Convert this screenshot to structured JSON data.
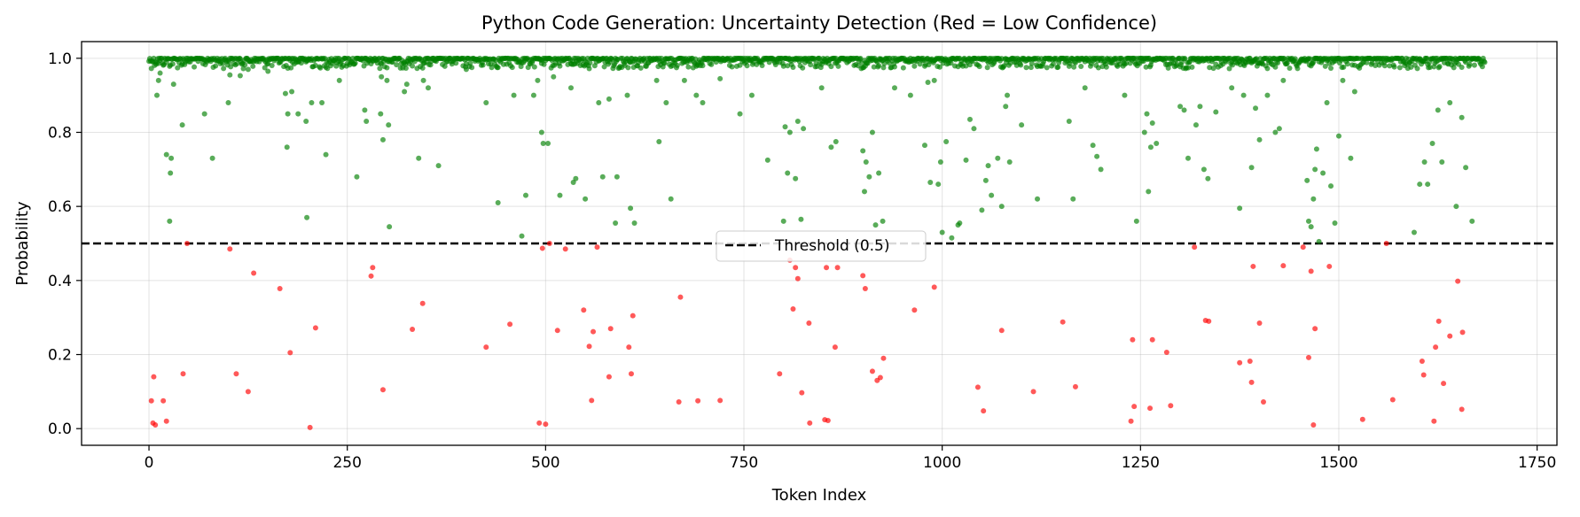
{
  "chart_data": {
    "type": "scatter",
    "title": "Python Code Generation: Uncertainty Detection (Red = Low Confidence)",
    "xlabel": "Token Index",
    "ylabel": "Probability",
    "xlim": [
      -85,
      1775
    ],
    "ylim": [
      -0.045,
      1.045
    ],
    "xticks": [
      0,
      250,
      500,
      750,
      1000,
      1250,
      1500,
      1750
    ],
    "yticks": [
      0.0,
      0.2,
      0.4,
      0.6,
      0.8,
      1.0
    ],
    "xtick_labels": [
      "0",
      "250",
      "500",
      "750",
      "1000",
      "1250",
      "1500",
      "1750"
    ],
    "ytick_labels": [
      "0.0",
      "0.2",
      "0.4",
      "0.6",
      "0.8",
      "1.0"
    ],
    "grid": true,
    "legend_position": "center",
    "threshold": {
      "label": "Threshold (0.5)",
      "value": 0.5,
      "color": "#000000"
    },
    "colors": {
      "high": "#008000",
      "low": "#ff0000"
    },
    "n_tokens": 1685,
    "low_confidence": [
      [
        3,
        0.075
      ],
      [
        5,
        0.015
      ],
      [
        6,
        0.14
      ],
      [
        8,
        0.01
      ],
      [
        18,
        0.075
      ],
      [
        22,
        0.02
      ],
      [
        43,
        0.148
      ],
      [
        48,
        0.5
      ],
      [
        102,
        0.485
      ],
      [
        110,
        0.148
      ],
      [
        125,
        0.1
      ],
      [
        132,
        0.42
      ],
      [
        165,
        0.378
      ],
      [
        178,
        0.205
      ],
      [
        203,
        0.003
      ],
      [
        210,
        0.272
      ],
      [
        280,
        0.412
      ],
      [
        282,
        0.435
      ],
      [
        295,
        0.105
      ],
      [
        332,
        0.268
      ],
      [
        345,
        0.338
      ],
      [
        425,
        0.22
      ],
      [
        455,
        0.282
      ],
      [
        492,
        0.015
      ],
      [
        496,
        0.487
      ],
      [
        500,
        0.012
      ],
      [
        505,
        0.5
      ],
      [
        515,
        0.265
      ],
      [
        525,
        0.485
      ],
      [
        548,
        0.32
      ],
      [
        555,
        0.222
      ],
      [
        558,
        0.076
      ],
      [
        560,
        0.262
      ],
      [
        565,
        0.49
      ],
      [
        580,
        0.14
      ],
      [
        582,
        0.27
      ],
      [
        605,
        0.22
      ],
      [
        608,
        0.148
      ],
      [
        610,
        0.305
      ],
      [
        668,
        0.072
      ],
      [
        670,
        0.355
      ],
      [
        692,
        0.075
      ],
      [
        720,
        0.076
      ],
      [
        795,
        0.148
      ],
      [
        808,
        0.455
      ],
      [
        812,
        0.323
      ],
      [
        815,
        0.435
      ],
      [
        818,
        0.405
      ],
      [
        823,
        0.097
      ],
      [
        832,
        0.285
      ],
      [
        833,
        0.015
      ],
      [
        852,
        0.024
      ],
      [
        854,
        0.435
      ],
      [
        856,
        0.022
      ],
      [
        865,
        0.22
      ],
      [
        868,
        0.435
      ],
      [
        900,
        0.413
      ],
      [
        903,
        0.378
      ],
      [
        912,
        0.155
      ],
      [
        918,
        0.13
      ],
      [
        922,
        0.138
      ],
      [
        926,
        0.19
      ],
      [
        965,
        0.32
      ],
      [
        990,
        0.382
      ],
      [
        1045,
        0.112
      ],
      [
        1052,
        0.048
      ],
      [
        1075,
        0.265
      ],
      [
        1115,
        0.1
      ],
      [
        1152,
        0.288
      ],
      [
        1168,
        0.113
      ],
      [
        1238,
        0.02
      ],
      [
        1240,
        0.24
      ],
      [
        1242,
        0.06
      ],
      [
        1262,
        0.055
      ],
      [
        1265,
        0.24
      ],
      [
        1283,
        0.206
      ],
      [
        1288,
        0.062
      ],
      [
        1318,
        0.49
      ],
      [
        1332,
        0.292
      ],
      [
        1336,
        0.29
      ],
      [
        1375,
        0.178
      ],
      [
        1388,
        0.182
      ],
      [
        1390,
        0.125
      ],
      [
        1392,
        0.438
      ],
      [
        1400,
        0.285
      ],
      [
        1405,
        0.072
      ],
      [
        1430,
        0.44
      ],
      [
        1455,
        0.49
      ],
      [
        1462,
        0.192
      ],
      [
        1465,
        0.425
      ],
      [
        1468,
        0.01
      ],
      [
        1470,
        0.27
      ],
      [
        1488,
        0.438
      ],
      [
        1530,
        0.025
      ],
      [
        1560,
        0.5
      ],
      [
        1568,
        0.078
      ],
      [
        1605,
        0.182
      ],
      [
        1607,
        0.145
      ],
      [
        1620,
        0.02
      ],
      [
        1622,
        0.22
      ],
      [
        1626,
        0.29
      ],
      [
        1632,
        0.122
      ],
      [
        1640,
        0.25
      ],
      [
        1650,
        0.398
      ],
      [
        1655,
        0.052
      ],
      [
        1656,
        0.26
      ]
    ],
    "medium_confidence": [
      [
        10,
        0.9
      ],
      [
        12,
        0.94
      ],
      [
        14,
        0.96
      ],
      [
        22,
        0.74
      ],
      [
        26,
        0.56
      ],
      [
        27,
        0.69
      ],
      [
        28,
        0.73
      ],
      [
        31,
        0.93
      ],
      [
        42,
        0.82
      ],
      [
        70,
        0.85
      ],
      [
        80,
        0.73
      ],
      [
        100,
        0.88
      ],
      [
        102,
        0.955
      ],
      [
        115,
        0.953
      ],
      [
        125,
        0.97
      ],
      [
        150,
        0.965
      ],
      [
        172,
        0.905
      ],
      [
        174,
        0.76
      ],
      [
        175,
        0.85
      ],
      [
        180,
        0.91
      ],
      [
        188,
        0.85
      ],
      [
        198,
        0.83
      ],
      [
        199,
        0.57
      ],
      [
        205,
        0.88
      ],
      [
        218,
        0.88
      ],
      [
        223,
        0.74
      ],
      [
        240,
        0.94
      ],
      [
        262,
        0.68
      ],
      [
        272,
        0.86
      ],
      [
        274,
        0.83
      ],
      [
        292,
        0.85
      ],
      [
        293,
        0.95
      ],
      [
        295,
        0.78
      ],
      [
        300,
        0.94
      ],
      [
        302,
        0.82
      ],
      [
        303,
        0.545
      ],
      [
        322,
        0.91
      ],
      [
        325,
        0.93
      ],
      [
        340,
        0.73
      ],
      [
        346,
        0.94
      ],
      [
        352,
        0.92
      ],
      [
        365,
        0.71
      ],
      [
        400,
        0.97
      ],
      [
        425,
        0.88
      ],
      [
        440,
        0.61
      ],
      [
        460,
        0.9
      ],
      [
        470,
        0.52
      ],
      [
        475,
        0.63
      ],
      [
        485,
        0.9
      ],
      [
        490,
        0.94
      ],
      [
        495,
        0.8
      ],
      [
        497,
        0.77
      ],
      [
        503,
        0.77
      ],
      [
        510,
        0.95
      ],
      [
        518,
        0.63
      ],
      [
        532,
        0.92
      ],
      [
        535,
        0.665
      ],
      [
        538,
        0.675
      ],
      [
        550,
        0.62
      ],
      [
        567,
        0.88
      ],
      [
        572,
        0.68
      ],
      [
        580,
        0.89
      ],
      [
        588,
        0.555
      ],
      [
        590,
        0.68
      ],
      [
        603,
        0.9
      ],
      [
        607,
        0.595
      ],
      [
        612,
        0.555
      ],
      [
        640,
        0.94
      ],
      [
        643,
        0.775
      ],
      [
        652,
        0.88
      ],
      [
        658,
        0.62
      ],
      [
        675,
        0.94
      ],
      [
        690,
        0.9
      ],
      [
        698,
        0.88
      ],
      [
        720,
        0.945
      ],
      [
        745,
        0.85
      ],
      [
        760,
        0.9
      ],
      [
        780,
        0.725
      ],
      [
        800,
        0.56
      ],
      [
        802,
        0.815
      ],
      [
        805,
        0.69
      ],
      [
        808,
        0.8
      ],
      [
        815,
        0.675
      ],
      [
        818,
        0.83
      ],
      [
        822,
        0.565
      ],
      [
        825,
        0.81
      ],
      [
        848,
        0.92
      ],
      [
        860,
        0.76
      ],
      [
        866,
        0.775
      ],
      [
        900,
        0.75
      ],
      [
        902,
        0.64
      ],
      [
        904,
        0.72
      ],
      [
        908,
        0.68
      ],
      [
        912,
        0.8
      ],
      [
        916,
        0.55
      ],
      [
        920,
        0.69
      ],
      [
        925,
        0.56
      ],
      [
        940,
        0.92
      ],
      [
        960,
        0.9
      ],
      [
        978,
        0.765
      ],
      [
        982,
        0.935
      ],
      [
        985,
        0.665
      ],
      [
        990,
        0.94
      ],
      [
        995,
        0.66
      ],
      [
        998,
        0.72
      ],
      [
        1000,
        0.53
      ],
      [
        1005,
        0.775
      ],
      [
        1012,
        0.515
      ],
      [
        1020,
        0.55
      ],
      [
        1022,
        0.555
      ],
      [
        1030,
        0.725
      ],
      [
        1035,
        0.835
      ],
      [
        1040,
        0.81
      ],
      [
        1050,
        0.59
      ],
      [
        1055,
        0.67
      ],
      [
        1058,
        0.71
      ],
      [
        1062,
        0.63
      ],
      [
        1070,
        0.73
      ],
      [
        1075,
        0.6
      ],
      [
        1080,
        0.87
      ],
      [
        1082,
        0.9
      ],
      [
        1085,
        0.72
      ],
      [
        1100,
        0.82
      ],
      [
        1120,
        0.62
      ],
      [
        1160,
        0.83
      ],
      [
        1165,
        0.62
      ],
      [
        1180,
        0.92
      ],
      [
        1190,
        0.765
      ],
      [
        1195,
        0.735
      ],
      [
        1200,
        0.7
      ],
      [
        1230,
        0.9
      ],
      [
        1245,
        0.56
      ],
      [
        1255,
        0.8
      ],
      [
        1258,
        0.85
      ],
      [
        1260,
        0.64
      ],
      [
        1263,
        0.76
      ],
      [
        1265,
        0.825
      ],
      [
        1270,
        0.77
      ],
      [
        1300,
        0.87
      ],
      [
        1305,
        0.86
      ],
      [
        1310,
        0.73
      ],
      [
        1320,
        0.82
      ],
      [
        1325,
        0.87
      ],
      [
        1330,
        0.7
      ],
      [
        1335,
        0.675
      ],
      [
        1345,
        0.855
      ],
      [
        1365,
        0.92
      ],
      [
        1375,
        0.595
      ],
      [
        1380,
        0.9
      ],
      [
        1390,
        0.705
      ],
      [
        1395,
        0.865
      ],
      [
        1400,
        0.78
      ],
      [
        1410,
        0.9
      ],
      [
        1420,
        0.8
      ],
      [
        1425,
        0.81
      ],
      [
        1430,
        0.94
      ],
      [
        1460,
        0.67
      ],
      [
        1462,
        0.56
      ],
      [
        1465,
        0.545
      ],
      [
        1468,
        0.62
      ],
      [
        1470,
        0.7
      ],
      [
        1472,
        0.755
      ],
      [
        1475,
        0.505
      ],
      [
        1480,
        0.69
      ],
      [
        1485,
        0.88
      ],
      [
        1490,
        0.655
      ],
      [
        1495,
        0.555
      ],
      [
        1500,
        0.79
      ],
      [
        1505,
        0.94
      ],
      [
        1515,
        0.73
      ],
      [
        1520,
        0.91
      ],
      [
        1595,
        0.53
      ],
      [
        1602,
        0.66
      ],
      [
        1608,
        0.72
      ],
      [
        1612,
        0.66
      ],
      [
        1618,
        0.77
      ],
      [
        1625,
        0.86
      ],
      [
        1630,
        0.72
      ],
      [
        1640,
        0.88
      ],
      [
        1648,
        0.6
      ],
      [
        1655,
        0.84
      ],
      [
        1660,
        0.705
      ],
      [
        1668,
        0.56
      ]
    ]
  }
}
